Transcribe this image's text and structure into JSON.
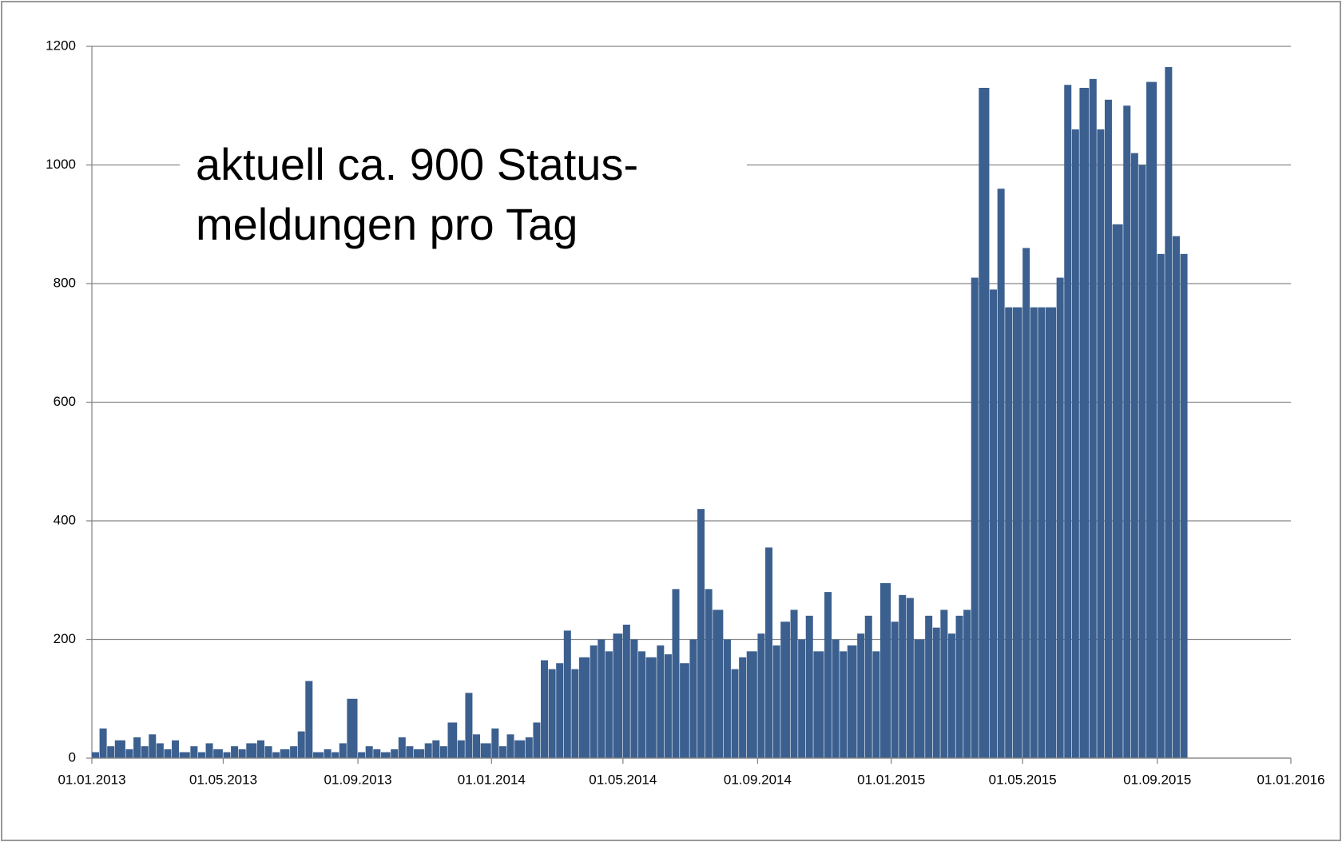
{
  "chart_data": {
    "type": "bar",
    "color": "#3b5f8f",
    "annotation": [
      "aktuell ca. 900 Status-",
      "meldungen pro Tag"
    ],
    "x": [
      "01.01.2013",
      "08.01.2013",
      "15.01.2013",
      "22.01.2013",
      "01.02.2013",
      "08.02.2013",
      "15.02.2013",
      "22.02.2013",
      "01.03.2013",
      "08.03.2013",
      "15.03.2013",
      "22.03.2013",
      "01.04.2013",
      "08.04.2013",
      "15.04.2013",
      "22.04.2013",
      "01.05.2013",
      "08.05.2013",
      "15.05.2013",
      "22.05.2013",
      "01.06.2013",
      "08.06.2013",
      "15.06.2013",
      "22.06.2013",
      "01.07.2013",
      "08.07.2013",
      "15.07.2013",
      "22.07.2013",
      "01.08.2013",
      "08.08.2013",
      "15.08.2013",
      "22.08.2013",
      "01.09.2013",
      "08.09.2013",
      "15.09.2013",
      "22.09.2013",
      "01.10.2013",
      "08.10.2013",
      "15.10.2013",
      "22.10.2013",
      "01.11.2013",
      "08.11.2013",
      "15.11.2013",
      "22.11.2013",
      "01.12.2013",
      "08.12.2013",
      "15.12.2013",
      "22.12.2013",
      "01.01.2014",
      "08.01.2014",
      "15.01.2014",
      "22.01.2014",
      "01.02.2014",
      "08.02.2014",
      "15.02.2014",
      "22.02.2014",
      "01.03.2014",
      "08.03.2014",
      "15.03.2014",
      "22.03.2014",
      "01.04.2014",
      "08.04.2014",
      "15.04.2014",
      "22.04.2014",
      "01.05.2014",
      "08.05.2014",
      "15.05.2014",
      "22.05.2014",
      "01.06.2014",
      "08.06.2014",
      "15.06.2014",
      "22.06.2014",
      "01.07.2014",
      "08.07.2014",
      "15.07.2014",
      "22.07.2014",
      "01.08.2014",
      "08.08.2014",
      "15.08.2014",
      "22.08.2014",
      "01.09.2014",
      "08.09.2014",
      "15.09.2014",
      "22.09.2014",
      "01.10.2014",
      "08.10.2014",
      "15.10.2014",
      "22.10.2014",
      "01.11.2014",
      "08.11.2014",
      "15.11.2014",
      "22.11.2014",
      "01.12.2014",
      "08.12.2014",
      "15.12.2014",
      "22.12.2014",
      "01.01.2015",
      "08.01.2015",
      "15.01.2015",
      "22.01.2015",
      "01.02.2015",
      "08.02.2015",
      "15.02.2015",
      "22.02.2015",
      "01.03.2015",
      "08.03.2015",
      "15.03.2015",
      "22.03.2015",
      "01.04.2015",
      "08.04.2015",
      "15.04.2015",
      "22.04.2015",
      "01.05.2015",
      "08.05.2015",
      "15.05.2015",
      "22.05.2015",
      "01.06.2015",
      "08.06.2015",
      "15.06.2015",
      "22.06.2015",
      "01.07.2015",
      "08.07.2015",
      "15.07.2015",
      "22.07.2015",
      "01.08.2015",
      "08.08.2015",
      "15.08.2015",
      "22.08.2015",
      "01.09.2015",
      "08.09.2015",
      "15.09.2015",
      "22.09.2015"
    ],
    "values": [
      10,
      50,
      20,
      30,
      15,
      35,
      20,
      40,
      25,
      15,
      30,
      10,
      20,
      10,
      25,
      15,
      10,
      20,
      15,
      25,
      30,
      20,
      10,
      15,
      20,
      45,
      130,
      10,
      15,
      10,
      25,
      100,
      10,
      20,
      15,
      10,
      15,
      35,
      20,
      15,
      25,
      30,
      20,
      60,
      30,
      110,
      40,
      25,
      50,
      20,
      40,
      30,
      35,
      60,
      165,
      150,
      160,
      215,
      150,
      170,
      190,
      200,
      180,
      210,
      225,
      200,
      180,
      170,
      190,
      175,
      285,
      160,
      200,
      420,
      285,
      250,
      200,
      150,
      170,
      180,
      210,
      355,
      190,
      230,
      250,
      200,
      240,
      180,
      280,
      200,
      180,
      190,
      210,
      240,
      180,
      295,
      230,
      275,
      270,
      200,
      240,
      220,
      250,
      210,
      240,
      250,
      810,
      1130,
      790,
      960,
      760,
      760,
      860,
      760,
      760,
      760,
      810,
      1135,
      1060,
      1130,
      1145,
      1060,
      1110,
      900,
      1100,
      1020,
      1000,
      1140,
      850,
      1165,
      880,
      850
    ],
    "xlim": [
      "01.01.2013",
      "01.01.2016"
    ],
    "xticks": [
      "01.01.2013",
      "01.05.2013",
      "01.09.2013",
      "01.01.2014",
      "01.05.2014",
      "01.09.2014",
      "01.01.2015",
      "01.05.2015",
      "01.09.2015",
      "01.01.2016"
    ],
    "ylim": [
      0,
      1200
    ],
    "yticks": [
      0,
      200,
      400,
      600,
      800,
      1000,
      1200
    ],
    "grid": true
  }
}
